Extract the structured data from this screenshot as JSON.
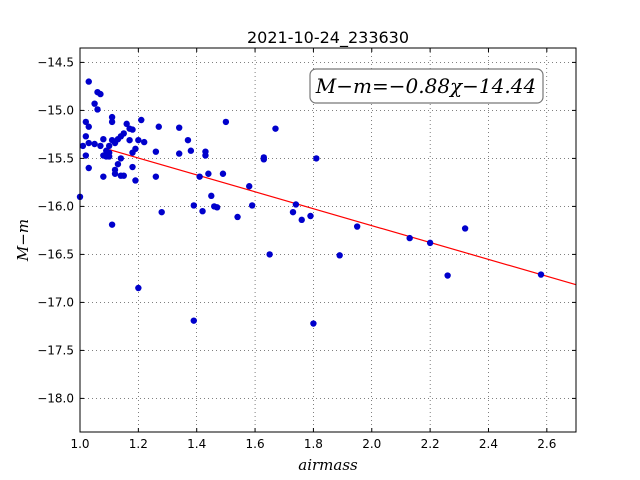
{
  "chart_data": {
    "type": "scatter",
    "title": "2021-10-24_233630",
    "xlabel": "airmass",
    "ylabel": "M−m",
    "xlim": [
      1.0,
      2.7
    ],
    "ylim": [
      -18.35,
      -14.35
    ],
    "y_inverted": true,
    "grid": true,
    "xticks": [
      "1.0",
      "1.2",
      "1.4",
      "1.6",
      "1.8",
      "2.0",
      "2.2",
      "2.4",
      "2.6"
    ],
    "yticks": [
      "−14.5",
      "−15.0",
      "−15.5",
      "−16.0",
      "−16.5",
      "−17.0",
      "−17.5",
      "−18.0"
    ],
    "fit_label": "M−m=−0.88χ−14.44",
    "fit": {
      "slope": -0.88,
      "intercept": -14.44,
      "x_range": [
        1.1,
        2.7
      ]
    },
    "colors": {
      "points": "#0000cc",
      "fit_line": "#ff0000"
    },
    "points": [
      [
        1.0,
        -15.9
      ],
      [
        1.01,
        -15.37
      ],
      [
        1.02,
        -15.47
      ],
      [
        1.02,
        -15.27
      ],
      [
        1.02,
        -15.12
      ],
      [
        1.03,
        -15.17
      ],
      [
        1.03,
        -15.6
      ],
      [
        1.03,
        -15.34
      ],
      [
        1.03,
        -14.7
      ],
      [
        1.05,
        -15.35
      ],
      [
        1.05,
        -14.93
      ],
      [
        1.06,
        -14.99
      ],
      [
        1.06,
        -14.81
      ],
      [
        1.07,
        -14.83
      ],
      [
        1.07,
        -15.37
      ],
      [
        1.08,
        -15.3
      ],
      [
        1.08,
        -15.47
      ],
      [
        1.08,
        -15.69
      ],
      [
        1.09,
        -15.42
      ],
      [
        1.09,
        -15.48
      ],
      [
        1.1,
        -15.37
      ],
      [
        1.1,
        -15.44
      ],
      [
        1.1,
        -15.48
      ],
      [
        1.11,
        -15.07
      ],
      [
        1.11,
        -15.12
      ],
      [
        1.11,
        -16.19
      ],
      [
        1.11,
        -15.31
      ],
      [
        1.12,
        -15.34
      ],
      [
        1.12,
        -15.62
      ],
      [
        1.12,
        -15.66
      ],
      [
        1.13,
        -15.56
      ],
      [
        1.13,
        -15.3
      ],
      [
        1.14,
        -15.68
      ],
      [
        1.14,
        -15.27
      ],
      [
        1.14,
        -15.5
      ],
      [
        1.15,
        -15.24
      ],
      [
        1.15,
        -15.68
      ],
      [
        1.16,
        -15.14
      ],
      [
        1.17,
        -15.31
      ],
      [
        1.17,
        -15.19
      ],
      [
        1.18,
        -15.2
      ],
      [
        1.18,
        -15.44
      ],
      [
        1.18,
        -15.59
      ],
      [
        1.19,
        -15.4
      ],
      [
        1.19,
        -15.73
      ],
      [
        1.2,
        -15.31
      ],
      [
        1.2,
        -16.85
      ],
      [
        1.21,
        -15.1
      ],
      [
        1.22,
        -15.33
      ],
      [
        1.26,
        -15.43
      ],
      [
        1.26,
        -15.69
      ],
      [
        1.27,
        -15.17
      ],
      [
        1.28,
        -16.06
      ],
      [
        1.34,
        -15.18
      ],
      [
        1.34,
        -15.45
      ],
      [
        1.37,
        -15.31
      ],
      [
        1.38,
        -15.42
      ],
      [
        1.39,
        -15.99
      ],
      [
        1.39,
        -17.19
      ],
      [
        1.41,
        -15.69
      ],
      [
        1.42,
        -16.05
      ],
      [
        1.43,
        -15.47
      ],
      [
        1.43,
        -15.43
      ],
      [
        1.44,
        -15.66
      ],
      [
        1.45,
        -15.89
      ],
      [
        1.46,
        -16.0
      ],
      [
        1.47,
        -16.01
      ],
      [
        1.49,
        -15.66
      ],
      [
        1.5,
        -15.12
      ],
      [
        1.54,
        -16.11
      ],
      [
        1.58,
        -15.79
      ],
      [
        1.59,
        -15.99
      ],
      [
        1.63,
        -15.51
      ],
      [
        1.63,
        -15.49
      ],
      [
        1.65,
        -16.5
      ],
      [
        1.67,
        -15.19
      ],
      [
        1.73,
        -16.06
      ],
      [
        1.74,
        -15.98
      ],
      [
        1.76,
        -16.14
      ],
      [
        1.79,
        -16.1
      ],
      [
        1.8,
        -17.22
      ],
      [
        1.81,
        -15.5
      ],
      [
        1.89,
        -16.51
      ],
      [
        1.95,
        -16.21
      ],
      [
        2.13,
        -16.33
      ],
      [
        2.2,
        -16.38
      ],
      [
        2.26,
        -16.72
      ],
      [
        2.32,
        -16.23
      ],
      [
        2.58,
        -16.71
      ]
    ]
  }
}
